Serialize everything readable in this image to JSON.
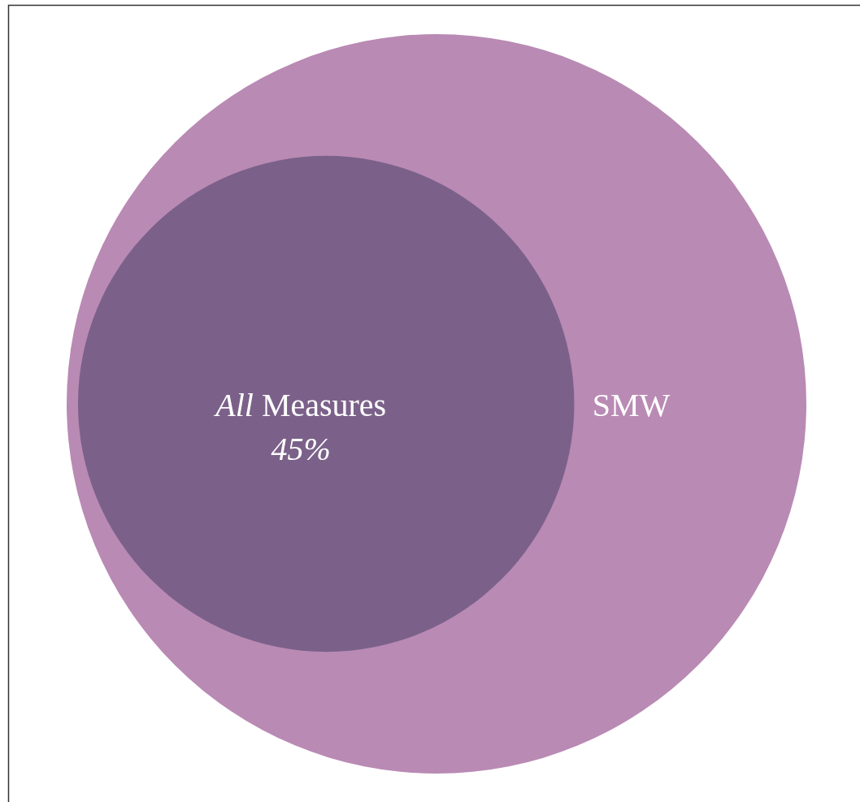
{
  "chart_data": {
    "type": "other",
    "categories": [
      "SMW",
      "All Measures"
    ],
    "values": [
      null,
      45
    ],
    "value_labels": [
      null,
      "45%"
    ],
    "colors": [
      "#b98ab4",
      "#7b6189"
    ]
  }
}
